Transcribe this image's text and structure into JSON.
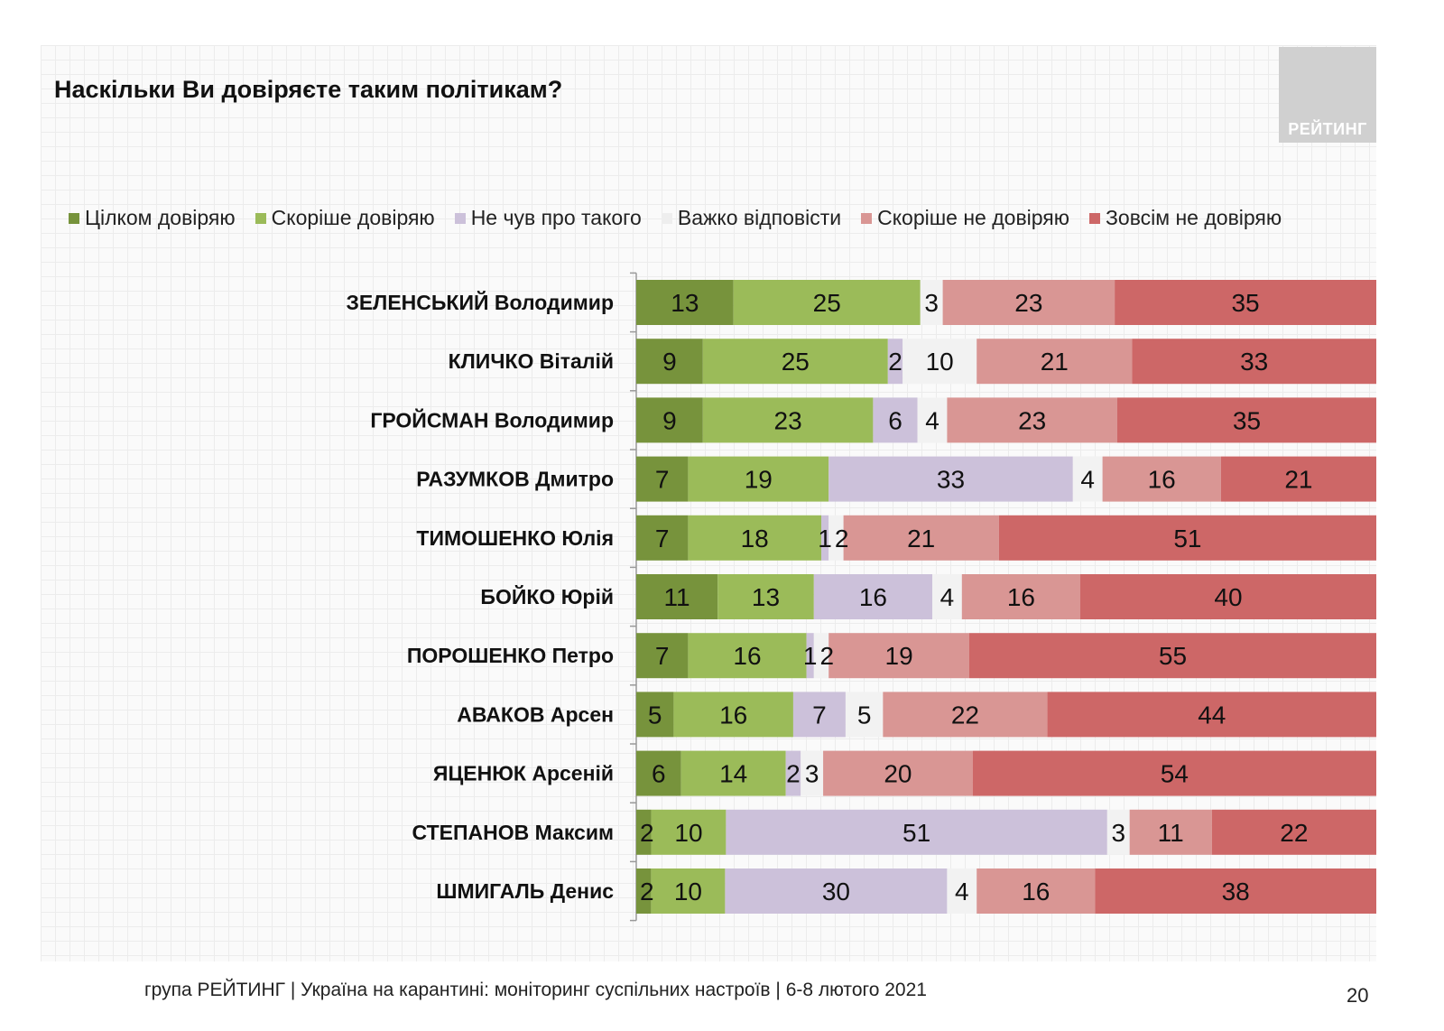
{
  "title": "Наскільки Ви довіряєте таким політикам?",
  "logo_text": "РЕЙТИНГ",
  "footer": "група РЕЙТИНГ | Україна на карантині: моніторинг суспільних настроїв | 6-8 лютого 2021",
  "page_number": "20",
  "chart_data": {
    "type": "bar",
    "orientation": "horizontal",
    "stacked": true,
    "title": "Наскільки Ви довіряєте таким політикам?",
    "legend_position": "top",
    "categories": [
      "ЗЕЛЕНСЬКИЙ Володимир",
      "КЛИЧКО Віталій",
      "ГРОЙСМАН Володимир",
      "РАЗУМКОВ Дмитро",
      "ТИМОШЕНКО Юлія",
      "БОЙКО Юрій",
      "ПОРОШЕНКО Петро",
      "АВАКОВ Арсен",
      "ЯЦЕНЮК Арсеній",
      "СТЕПАНОВ Максим",
      "ШМИГАЛЬ Денис"
    ],
    "series": [
      {
        "name": "Цілком довіряю",
        "color": "#77933c",
        "values": [
          13,
          9,
          9,
          7,
          7,
          11,
          7,
          5,
          6,
          2,
          2
        ]
      },
      {
        "name": "Скоріше довіряю",
        "color": "#9bbb59",
        "values": [
          25,
          25,
          23,
          19,
          18,
          13,
          16,
          16,
          14,
          10,
          10
        ]
      },
      {
        "name": "Не чув про такого",
        "color": "#ccc1da",
        "values": [
          0,
          2,
          6,
          33,
          1,
          16,
          1,
          7,
          2,
          51,
          30
        ]
      },
      {
        "name": "Важко відповісти",
        "color": "#f2f2f2",
        "values": [
          3,
          10,
          4,
          4,
          2,
          4,
          2,
          5,
          3,
          3,
          4
        ]
      },
      {
        "name": "Скоріше не довіряю",
        "color": "#d99694",
        "values": [
          23,
          21,
          23,
          16,
          21,
          16,
          19,
          22,
          20,
          11,
          16
        ]
      },
      {
        "name": "Зовсім не довіряю",
        "color": "#cd6767",
        "values": [
          35,
          33,
          35,
          21,
          51,
          40,
          55,
          44,
          54,
          22,
          38
        ]
      }
    ]
  }
}
